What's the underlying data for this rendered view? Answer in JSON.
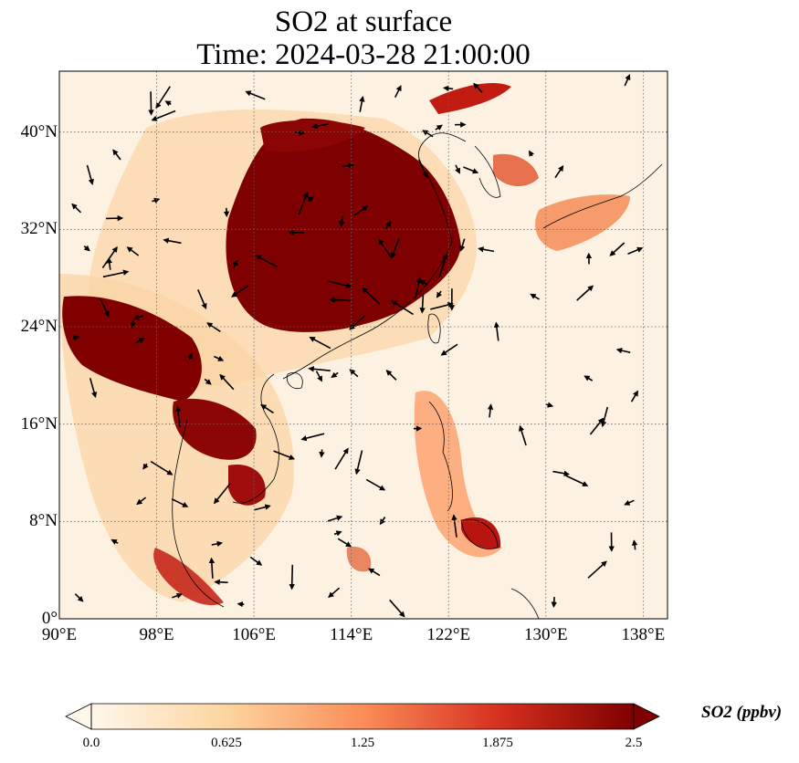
{
  "title": {
    "line1": "SO2 at surface",
    "line2": "Time: 2024-03-28 21:00:00"
  },
  "map": {
    "extent_lon": [
      90,
      140
    ],
    "extent_lat": [
      0,
      45
    ],
    "gridlines": true,
    "lat_ticks": [
      {
        "value": 0,
        "label": "0°"
      },
      {
        "value": 8,
        "label": "8°N"
      },
      {
        "value": 16,
        "label": "16°N"
      },
      {
        "value": 24,
        "label": "24°N"
      },
      {
        "value": 32,
        "label": "32°N"
      },
      {
        "value": 40,
        "label": "40°N"
      }
    ],
    "lon_ticks": [
      {
        "value": 90,
        "label": "90°E"
      },
      {
        "value": 98,
        "label": "98°E"
      },
      {
        "value": 106,
        "label": "106°E"
      },
      {
        "value": 114,
        "label": "114°E"
      },
      {
        "value": 122,
        "label": "122°E"
      },
      {
        "value": 130,
        "label": "130°E"
      },
      {
        "value": 138,
        "label": "138°E"
      }
    ],
    "wind_vectors": "shown as black arrows"
  },
  "colorbar": {
    "label": "SO2 (ppbv)",
    "min": 0.0,
    "max": 2.5,
    "ticks": [
      "0.0",
      "0.625",
      "1.25",
      "1.875",
      "2.5"
    ],
    "colormap": [
      "#fff7ec",
      "#fdd49e",
      "#fc8d59",
      "#d7301f",
      "#7f0000"
    ],
    "extend": "both"
  }
}
